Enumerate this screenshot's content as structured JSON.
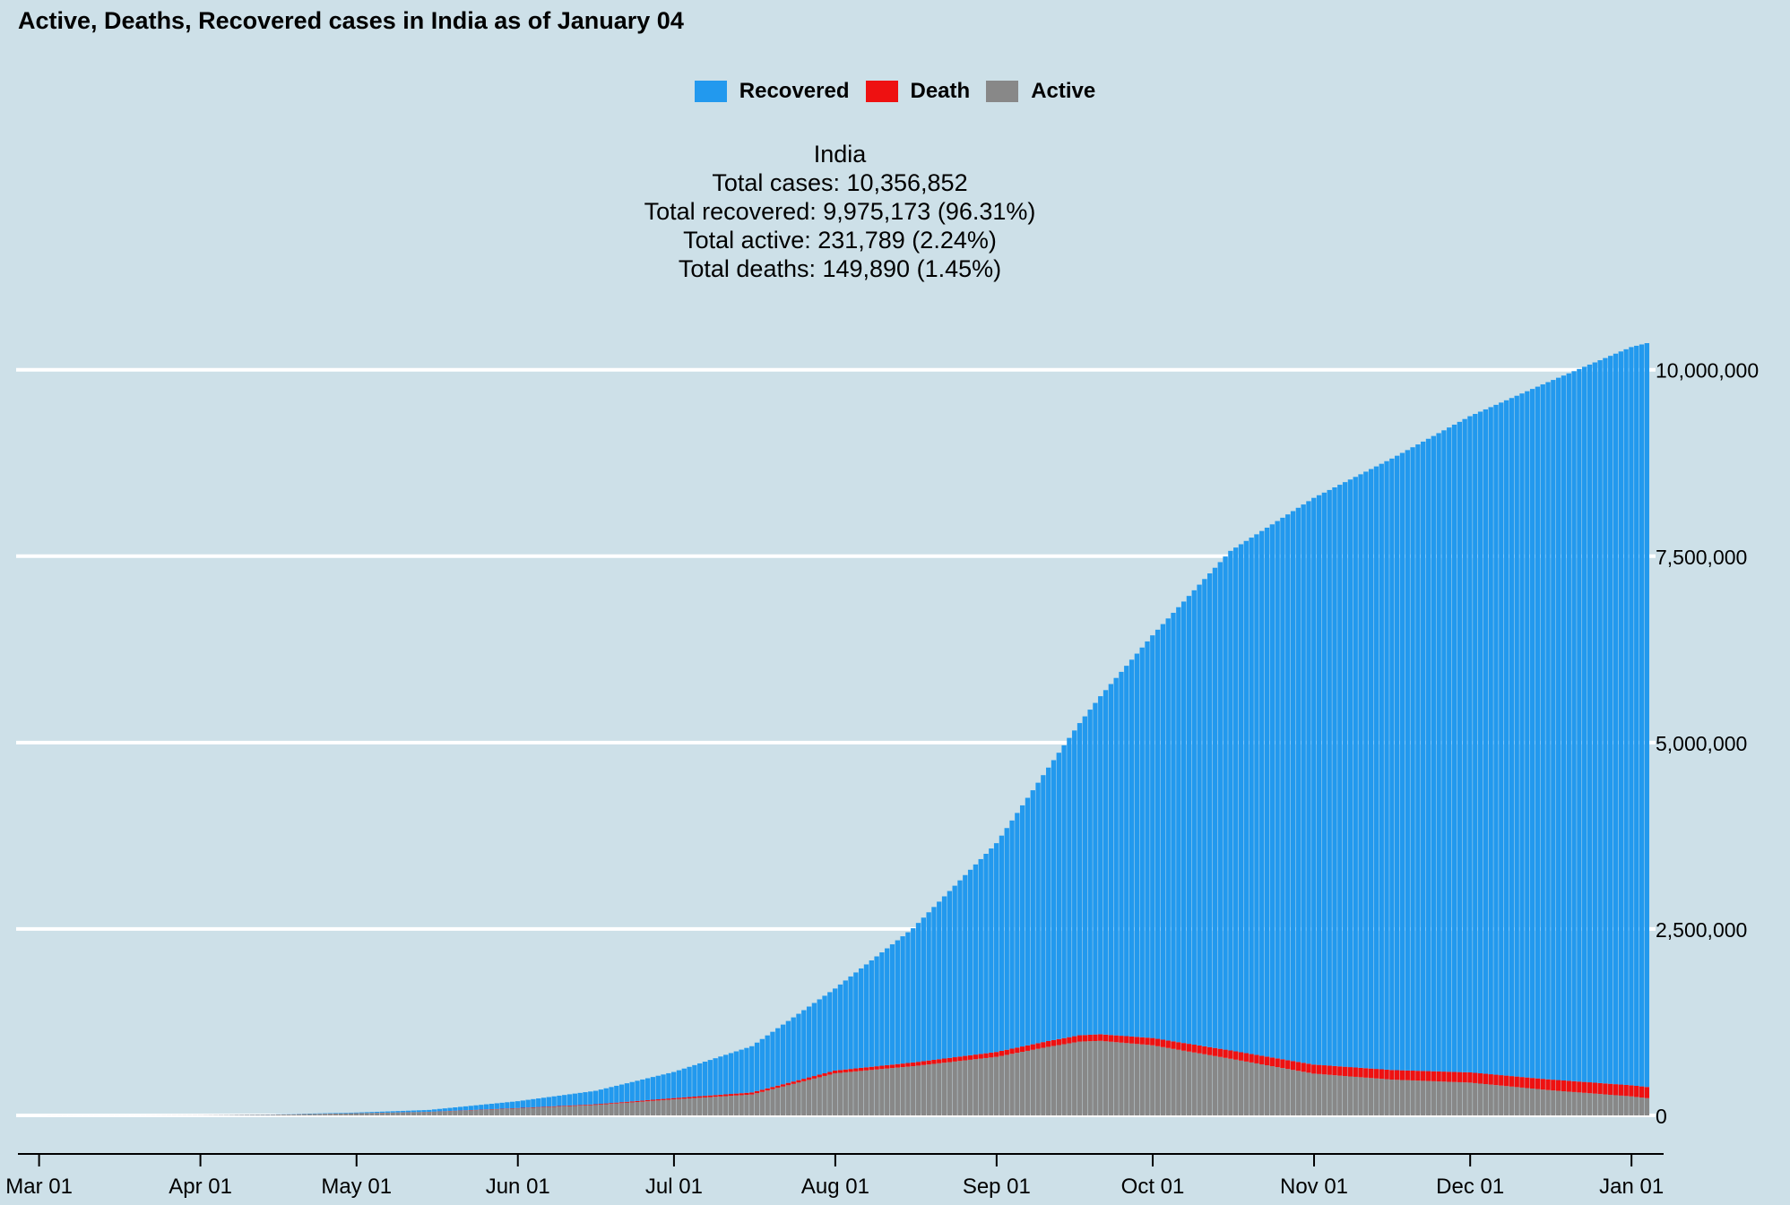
{
  "title": "Active, Deaths, Recovered cases in India as of January 04",
  "legend": [
    {
      "label": "Recovered",
      "color": "#2299ee"
    },
    {
      "label": "Death",
      "color": "#ee1111"
    },
    {
      "label": "Active",
      "color": "#888888"
    }
  ],
  "stats": {
    "country": "India",
    "total_cases": "Total cases: 10,356,852",
    "total_recovered": "Total recovered: 9,975,173 (96.31%)",
    "total_active": "Total active: 231,789 (2.24%)",
    "total_deaths": "Total deaths: 149,890 (1.45%)"
  },
  "colors": {
    "background": "#cde0e8",
    "grid": "#ffffff",
    "recovered": "#2299ee",
    "death": "#ee1111",
    "active": "#888888",
    "axis": "#000000"
  },
  "chart_data": {
    "type": "bar",
    "stacked": true,
    "title": "Active, Deaths, Recovered cases in India as of January 04",
    "xlabel": "",
    "ylabel": "",
    "ylim": [
      0,
      10356852
    ],
    "y_ticks": [
      0,
      2500000,
      5000000,
      7500000,
      10000000
    ],
    "y_tick_labels": [
      "0",
      "2,500,000",
      "5,000,000",
      "7,500,000",
      "10,000,000"
    ],
    "y_axis_position": "right",
    "grid": "horizontal",
    "legend_position": "top-center",
    "x_ticks": [
      {
        "day": 0,
        "label": "Mar 01"
      },
      {
        "day": 31,
        "label": "Apr 01"
      },
      {
        "day": 61,
        "label": "May 01"
      },
      {
        "day": 92,
        "label": "Jun 01"
      },
      {
        "day": 122,
        "label": "Jul 01"
      },
      {
        "day": 153,
        "label": "Aug 01"
      },
      {
        "day": 184,
        "label": "Sep 01"
      },
      {
        "day": 214,
        "label": "Oct 01"
      },
      {
        "day": 245,
        "label": "Nov 01"
      },
      {
        "day": 275,
        "label": "Dec 01"
      },
      {
        "day": 306,
        "label": "Jan 01"
      }
    ],
    "x_domain_days": [
      -2,
      312
    ],
    "bar_days": [
      1,
      309
    ],
    "series_note": "Daily cumulative values from Mar 01 to Jan 04; anchor points interpolated daily",
    "series": [
      {
        "name": "Active",
        "anchors": [
          [
            1,
            0
          ],
          [
            20,
            300
          ],
          [
            31,
            1500
          ],
          [
            45,
            10000
          ],
          [
            61,
            28000
          ],
          [
            75,
            45000
          ],
          [
            92,
            93000
          ],
          [
            107,
            140000
          ],
          [
            122,
            215000
          ],
          [
            137,
            280000
          ],
          [
            153,
            565000
          ],
          [
            168,
            660000
          ],
          [
            184,
            785000
          ],
          [
            194,
            920000
          ],
          [
            200,
            990000
          ],
          [
            204,
            1000000
          ],
          [
            214,
            940000
          ],
          [
            229,
            760000
          ],
          [
            245,
            560000
          ],
          [
            260,
            480000
          ],
          [
            275,
            440000
          ],
          [
            290,
            340000
          ],
          [
            306,
            255000
          ],
          [
            309,
            231789
          ]
        ]
      },
      {
        "name": "Death",
        "anchors": [
          [
            1,
            0
          ],
          [
            31,
            40
          ],
          [
            45,
            400
          ],
          [
            61,
            1200
          ],
          [
            75,
            2500
          ],
          [
            92,
            5500
          ],
          [
            107,
            10000
          ],
          [
            122,
            17400
          ],
          [
            137,
            28000
          ],
          [
            153,
            36500
          ],
          [
            168,
            50000
          ],
          [
            184,
            66000
          ],
          [
            199,
            84000
          ],
          [
            214,
            98000
          ],
          [
            229,
            111000
          ],
          [
            245,
            122000
          ],
          [
            260,
            129000
          ],
          [
            275,
            137000
          ],
          [
            290,
            144000
          ],
          [
            306,
            149000
          ],
          [
            309,
            149890
          ]
        ]
      },
      {
        "name": "Recovered",
        "anchors": [
          [
            1,
            3
          ],
          [
            31,
            120
          ],
          [
            45,
            2000
          ],
          [
            61,
            9000
          ],
          [
            75,
            26000
          ],
          [
            92,
            92000
          ],
          [
            107,
            180000
          ],
          [
            122,
            350000
          ],
          [
            137,
            620000
          ],
          [
            153,
            1100000
          ],
          [
            168,
            1800000
          ],
          [
            184,
            2800000
          ],
          [
            199,
            4100000
          ],
          [
            214,
            5400000
          ],
          [
            229,
            6700000
          ],
          [
            245,
            7600000
          ],
          [
            260,
            8200000
          ],
          [
            275,
            8800000
          ],
          [
            290,
            9350000
          ],
          [
            306,
            9900000
          ],
          [
            309,
            9975173
          ]
        ]
      }
    ]
  }
}
